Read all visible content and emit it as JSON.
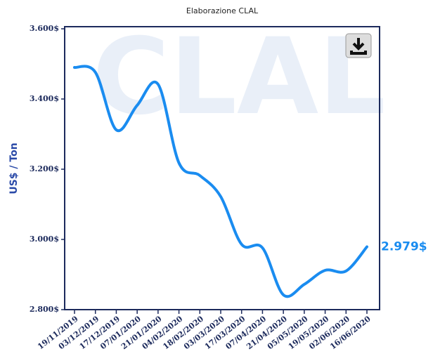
{
  "chart_data": {
    "type": "line",
    "title": "Elaborazione CLAL",
    "watermark": "CLAL",
    "ylabel": "US$ / Ton",
    "categories": [
      "19/11/2019",
      "03/12/2019",
      "17/12/2019",
      "07/01/2020",
      "21/01/2020",
      "04/02/2020",
      "18/02/2020",
      "03/03/2020",
      "17/03/2020",
      "07/04/2020",
      "21/04/2020",
      "05/05/2020",
      "19/05/2020",
      "02/06/2020",
      "16/06/2020"
    ],
    "series": [
      {
        "name": "US$ / Ton",
        "color": "#1a8cf0",
        "values": [
          3490,
          3476,
          3312,
          3382,
          3442,
          3218,
          3182,
          3122,
          2986,
          2976,
          2842,
          2872,
          2912,
          2910,
          2979
        ],
        "value_labels": [
          null,
          null,
          null,
          null,
          null,
          null,
          null,
          null,
          null,
          null,
          null,
          null,
          null,
          null,
          "2.979$"
        ]
      }
    ],
    "ylim": [
      2800,
      3600
    ],
    "yticks": [
      {
        "value": 2800,
        "label": "2.800$"
      },
      {
        "value": 3000,
        "label": "3.000$"
      },
      {
        "value": 3200,
        "label": "3.200$"
      },
      {
        "value": 3400,
        "label": "3.400$"
      },
      {
        "value": 3600,
        "label": "3.600$"
      }
    ],
    "grid": false
  }
}
